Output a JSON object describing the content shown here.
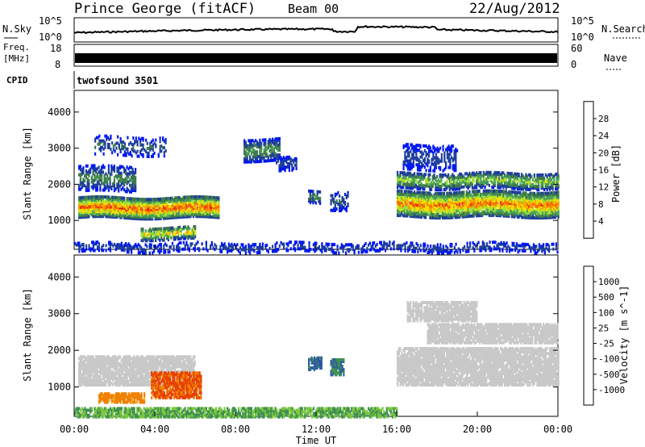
{
  "header": {
    "station": "Prince George (fitACF)",
    "beam": "Beam 00",
    "date": "22/Aug/2012"
  },
  "top_panels": {
    "noise": {
      "left_label": "N.Sky",
      "right_label": "N.Search",
      "left_ticks": [
        "10^5",
        "10^0"
      ],
      "right_ticks": [
        "10^5",
        "10^0"
      ]
    },
    "freq": {
      "left_label_1": "Freq.",
      "left_label_2": "[MHz]",
      "left_ticks": [
        "18",
        "8"
      ],
      "right_label": "Nave",
      "right_ticks": [
        "60",
        "0"
      ]
    },
    "cpid": {
      "label": "CPID",
      "value": "twofsound 3501"
    }
  },
  "chart_data": [
    {
      "type": "heatmap",
      "title": "",
      "xlabel": "",
      "ylabel": "Slant Range [km]",
      "x_ticks": [
        "00:00",
        "04:00",
        "08:00",
        "12:00",
        "16:00",
        "20:00",
        "00:00"
      ],
      "y_ticks": [
        1000,
        2000,
        3000,
        4000
      ],
      "xlim_hours": [
        0,
        24
      ],
      "ylim_km": [
        200,
        4600
      ],
      "colorbar": {
        "label": "Power [dB]",
        "ticks": [
          4,
          8,
          12,
          16,
          20,
          24,
          28
        ],
        "range": [
          0,
          32
        ],
        "colors": [
          "#0018ee",
          "#1f3f9c",
          "#3f7a4a",
          "#4aa05a",
          "#9ee03a",
          "#f5e000",
          "#f5a000",
          "#f26a00",
          "#e83010",
          "#e00000"
        ]
      },
      "echo_regions": [
        {
          "t0": 0.2,
          "t1": 7.2,
          "r_center": 1400,
          "r_halfwidth": 280,
          "peak_db": 28,
          "density": 0.9
        },
        {
          "t0": 0.2,
          "t1": 3.0,
          "r_center": 2200,
          "r_halfwidth": 350,
          "peak_db": 10,
          "density": 0.45
        },
        {
          "t0": 1.0,
          "t1": 4.5,
          "r_center": 3100,
          "r_halfwidth": 250,
          "peak_db": 8,
          "density": 0.25
        },
        {
          "t0": 3.3,
          "t1": 6.0,
          "r_center": 700,
          "r_halfwidth": 180,
          "peak_db": 20,
          "density": 0.6
        },
        {
          "t0": 8.4,
          "t1": 10.2,
          "r_center": 3000,
          "r_halfwidth": 300,
          "peak_db": 12,
          "density": 0.55
        },
        {
          "t0": 10.0,
          "t1": 11.0,
          "r_center": 2600,
          "r_halfwidth": 200,
          "peak_db": 6,
          "density": 0.5
        },
        {
          "t0": 11.6,
          "t1": 12.2,
          "r_center": 1700,
          "r_halfwidth": 180,
          "peak_db": 10,
          "density": 0.55
        },
        {
          "t0": 12.7,
          "t1": 13.6,
          "r_center": 1600,
          "r_halfwidth": 250,
          "peak_db": 8,
          "density": 0.4
        },
        {
          "t0": 16.0,
          "t1": 24.0,
          "r_center": 1500,
          "r_halfwidth": 350,
          "peak_db": 26,
          "density": 0.85
        },
        {
          "t0": 16.0,
          "t1": 24.0,
          "r_center": 2150,
          "r_halfwidth": 220,
          "peak_db": 16,
          "density": 0.6
        },
        {
          "t0": 16.3,
          "t1": 19.0,
          "r_center": 2800,
          "r_halfwidth": 350,
          "peak_db": 6,
          "density": 0.4
        },
        {
          "t0": 0.0,
          "t1": 24.0,
          "r_center": 300,
          "r_halfwidth": 120,
          "peak_db": 6,
          "density": 0.35
        }
      ]
    },
    {
      "type": "heatmap",
      "title": "",
      "xlabel": "Time UT",
      "ylabel": "Slant Range [km]",
      "x_ticks": [
        "00:00",
        "04:00",
        "08:00",
        "12:00",
        "16:00",
        "20:00",
        "00:00"
      ],
      "y_ticks": [
        1000,
        2000,
        3000,
        4000
      ],
      "xlim_hours": [
        0,
        24
      ],
      "ylim_km": [
        200,
        4600
      ],
      "colorbar": {
        "label": "Velocity [m s^-1]",
        "ticks": [
          "1000",
          "500",
          "100",
          "25",
          "-25",
          "-100",
          "-500",
          "-1000"
        ],
        "colors": [
          "#1f2fb0",
          "#2f5fa0",
          "#3f9050",
          "#7cc840",
          "#c8c8c8",
          "#f0b030",
          "#f08000",
          "#e84000",
          "#e00000"
        ]
      },
      "gray_regions": [
        {
          "t0": 0.2,
          "t1": 6.0,
          "r_center": 1500,
          "r_halfwidth": 400
        },
        {
          "t0": 16.0,
          "t1": 24.0,
          "r_center": 1600,
          "r_halfwidth": 500
        },
        {
          "t0": 17.5,
          "t1": 24.0,
          "r_center": 2500,
          "r_halfwidth": 250
        },
        {
          "t0": 16.5,
          "t1": 20.0,
          "r_center": 3100,
          "r_halfwidth": 250
        }
      ],
      "strong_flow_regions": [
        {
          "t0": 3.8,
          "t1": 6.3,
          "r_center": 1100,
          "r_halfwidth": 350,
          "velocity": -600
        },
        {
          "t0": 1.2,
          "t1": 3.5,
          "r_center": 750,
          "r_halfwidth": 120,
          "velocity": -150
        },
        {
          "t0": 11.6,
          "t1": 12.3,
          "r_center": 1700,
          "r_halfwidth": 180,
          "velocity": 700
        },
        {
          "t0": 12.7,
          "t1": 13.4,
          "r_center": 1600,
          "r_halfwidth": 220,
          "velocity": 500
        },
        {
          "t0": 0.0,
          "t1": 16.0,
          "r_center": 350,
          "r_halfwidth": 120,
          "velocity": 100
        }
      ]
    }
  ]
}
